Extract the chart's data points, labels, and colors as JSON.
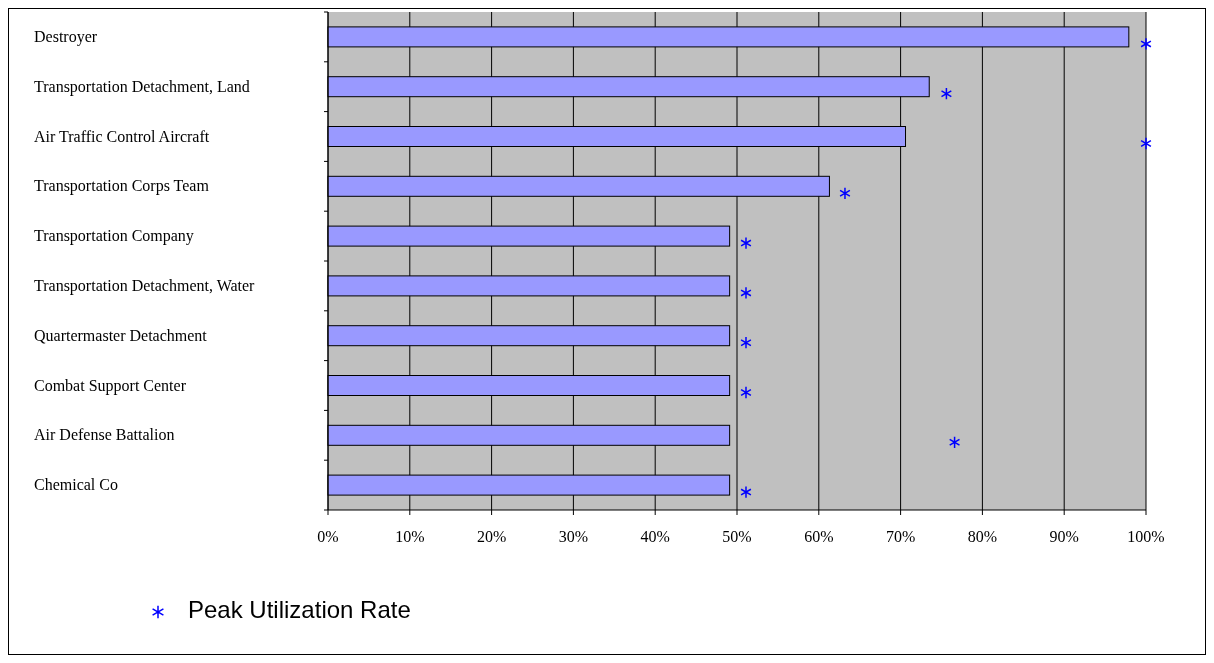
{
  "chart_data": {
    "type": "bar",
    "orientation": "horizontal",
    "categories": [
      "Destroyer",
      "Transportation Detachment, Land",
      "Air Traffic Control Aircraft",
      "Transportation Corps Team",
      "Transportation Company",
      "Transportation Detachment, Water",
      "Quartermaster Detachment",
      "Combat Support Center",
      "Air Defense Battalion",
      "Chemical Co"
    ],
    "series": [
      {
        "type": "bar",
        "color": "#9999ff",
        "values": [
          97.9,
          73.5,
          70.6,
          61.3,
          49.1,
          49.1,
          49.1,
          49.1,
          49.1,
          49.1
        ]
      },
      {
        "type": "scatter",
        "name": "Peak Utilization Rate",
        "color": "#0000ff",
        "marker": "cross",
        "values": [
          100,
          75.6,
          100,
          63.2,
          51.1,
          51.1,
          51.1,
          51.1,
          76.6,
          51.1
        ]
      }
    ],
    "xlim": [
      0,
      100
    ],
    "xticks": [
      {
        "value": 0,
        "label": "0%"
      },
      {
        "value": 10,
        "label": "10%"
      },
      {
        "value": 20,
        "label": "20%"
      },
      {
        "value": 30,
        "label": "30%"
      },
      {
        "value": 40,
        "label": "40%"
      },
      {
        "value": 50,
        "label": "50%"
      },
      {
        "value": 60,
        "label": "60%"
      },
      {
        "value": 70,
        "label": "70%"
      },
      {
        "value": 80,
        "label": "80%"
      },
      {
        "value": 90,
        "label": "90%"
      },
      {
        "value": 100,
        "label": "100%"
      }
    ],
    "grid": "x",
    "legend": "bottom left"
  }
}
